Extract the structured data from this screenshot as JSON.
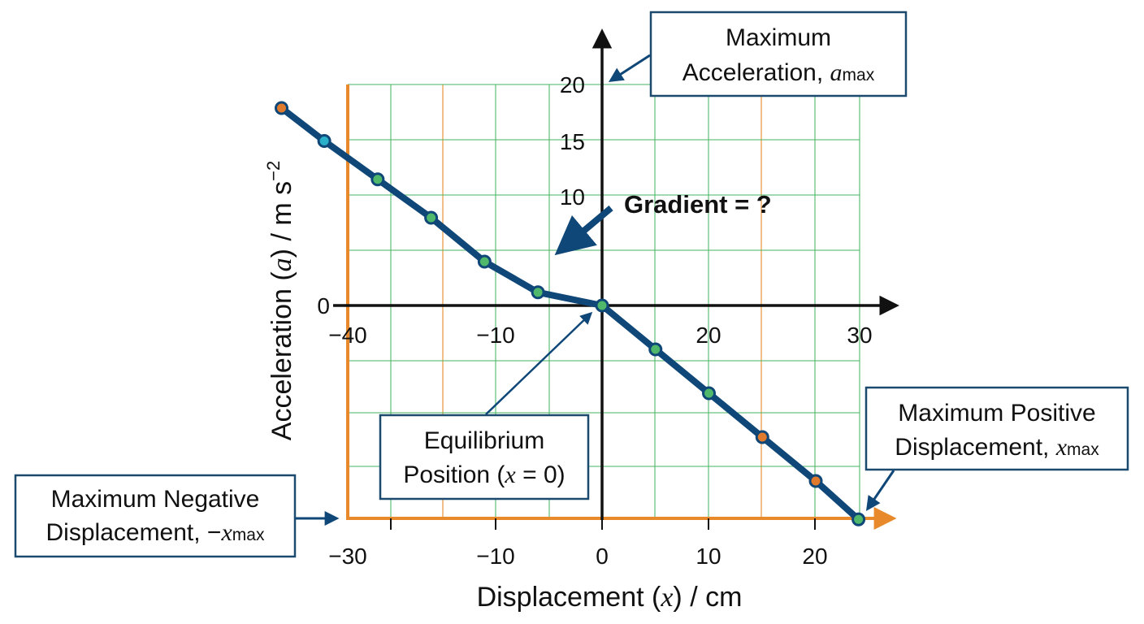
{
  "chart_data": {
    "type": "line",
    "xlabel": {
      "prefix": "Displacement (",
      "var": "x",
      "suffix": ") / cm"
    },
    "ylabel": {
      "prefix": "Acceleration (",
      "var": "a",
      "suffix": ") / m s",
      "sup": "−2"
    },
    "gradient_label": "Gradient = ?",
    "x_ticks_axis": [
      "−40",
      "−10",
      "20",
      "30"
    ],
    "x_ticks_bottom": [
      "−30",
      "−10",
      "0",
      "10",
      "20"
    ],
    "y_ticks": [
      "20",
      "15",
      "10",
      "0"
    ],
    "x": [
      -30,
      -26,
      -21,
      -16,
      -11,
      -6,
      0,
      5,
      10,
      15,
      20,
      24
    ],
    "y": [
      18,
      15,
      11.5,
      8,
      4,
      1.2,
      0,
      -4,
      -8,
      -12,
      -16,
      -19.5
    ],
    "marker_colors": [
      "#e07a2c",
      "#2bb0c9",
      "#4fb86a",
      "#4fb86a",
      "#4fb86a",
      "#4fb86a",
      "#4fb86a",
      "#4fb86a",
      "#4fb86a",
      "#e07a2c",
      "#e07a2c",
      "#4fb86a"
    ],
    "line_color": "#0f4778",
    "grid": true,
    "grid_color": "#4fb86a",
    "accent_color": "#e8892b"
  },
  "callouts": {
    "max_acc": {
      "line1": "Maximum",
      "line2": "Acceleration, ",
      "var": "a",
      "sub": "max"
    },
    "equilibrium": {
      "line1": "Equilibrium",
      "line2a": "Position (",
      "var": "x",
      "line2b": " = 0)"
    },
    "max_pos": {
      "line1": "Maximum Positive",
      "line2": "Displacement, ",
      "var": "x",
      "sub": "max"
    },
    "max_neg": {
      "line1": "Maximum Negative",
      "line2": "Displacement, −",
      "var": "x",
      "sub": "max"
    }
  }
}
